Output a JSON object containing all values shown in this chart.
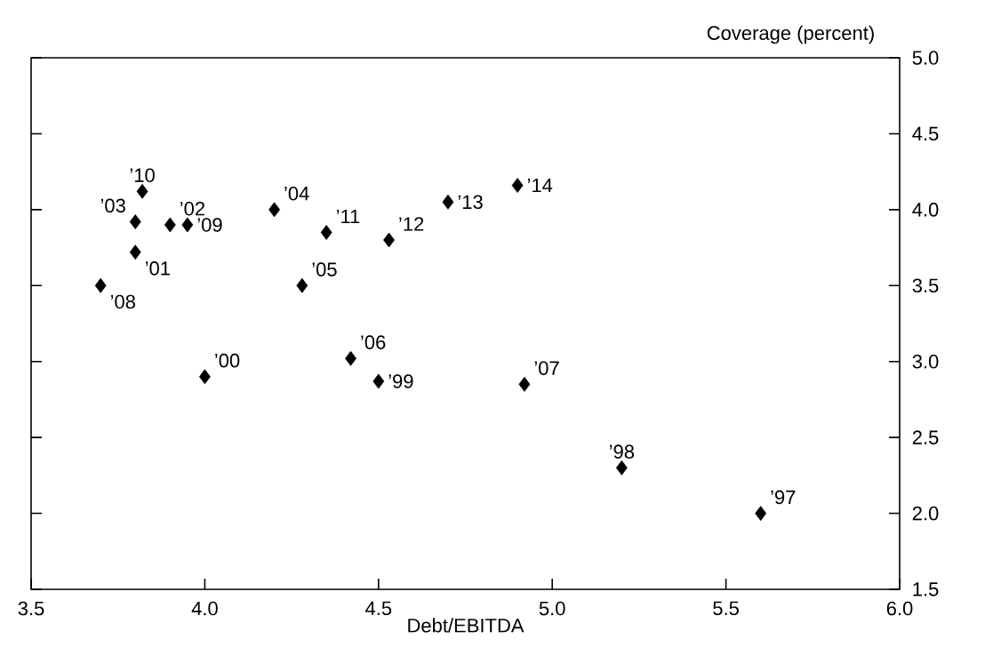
{
  "chart_data": {
    "type": "scatter",
    "xlabel": "Debt/EBITDA",
    "ylabel": "Coverage (percent)",
    "x": [
      5.6,
      5.2,
      4.5,
      4.0,
      3.8,
      3.9,
      3.8,
      4.2,
      4.28,
      4.42,
      4.92,
      3.7,
      3.95,
      3.82,
      4.35,
      4.53,
      4.7,
      4.9
    ],
    "values": [
      2.0,
      2.3,
      2.87,
      2.9,
      3.72,
      3.9,
      3.92,
      4.0,
      3.5,
      3.02,
      2.85,
      3.5,
      3.9,
      4.12,
      3.85,
      3.8,
      4.05,
      4.16
    ],
    "annotations": [
      {
        "text": "’97",
        "x": 5.6,
        "y": 2.0
      },
      {
        "text": "’98",
        "x": 5.2,
        "y": 2.3
      },
      {
        "text": "’99",
        "x": 4.5,
        "y": 2.87
      },
      {
        "text": "’00",
        "x": 4.0,
        "y": 2.9
      },
      {
        "text": "’01",
        "x": 3.8,
        "y": 3.72
      },
      {
        "text": "’02",
        "x": 3.9,
        "y": 3.9
      },
      {
        "text": "’03",
        "x": 3.8,
        "y": 3.92
      },
      {
        "text": "’04",
        "x": 4.2,
        "y": 4.0
      },
      {
        "text": "’05",
        "x": 4.28,
        "y": 3.5
      },
      {
        "text": "’06",
        "x": 4.42,
        "y": 3.02
      },
      {
        "text": "’07",
        "x": 4.92,
        "y": 2.85
      },
      {
        "text": "’08",
        "x": 3.7,
        "y": 3.5
      },
      {
        "text": "’09",
        "x": 3.95,
        "y": 3.9
      },
      {
        "text": "’10",
        "x": 3.82,
        "y": 4.12
      },
      {
        "text": "’11",
        "x": 4.35,
        "y": 3.85
      },
      {
        "text": "’12",
        "x": 4.53,
        "y": 3.8
      },
      {
        "text": "’13",
        "x": 4.7,
        "y": 4.05
      },
      {
        "text": "’14",
        "x": 4.9,
        "y": 4.16
      }
    ],
    "color": "#000000",
    "marker": "diamond",
    "xlim": [
      3.5,
      6.0
    ],
    "ylim": [
      1.5,
      5.0
    ],
    "xticks": [
      {
        "value": 3.5,
        "label": "3.5"
      },
      {
        "value": 4.0,
        "label": "4.0"
      },
      {
        "value": 4.5,
        "label": "4.5"
      },
      {
        "value": 5.0,
        "label": "5.0"
      },
      {
        "value": 5.5,
        "label": "5.5"
      },
      {
        "value": 6.0,
        "label": "6.0"
      }
    ],
    "yticks": [
      {
        "value": 1.5,
        "label": "1.5"
      },
      {
        "value": 2.0,
        "label": "2.0"
      },
      {
        "value": 2.5,
        "label": "2.5"
      },
      {
        "value": 3.0,
        "label": "3.0"
      },
      {
        "value": 3.5,
        "label": "3.5"
      },
      {
        "value": 4.0,
        "label": "4.0"
      },
      {
        "value": 4.5,
        "label": "4.5"
      },
      {
        "value": 5.0,
        "label": "5.0"
      }
    ]
  }
}
